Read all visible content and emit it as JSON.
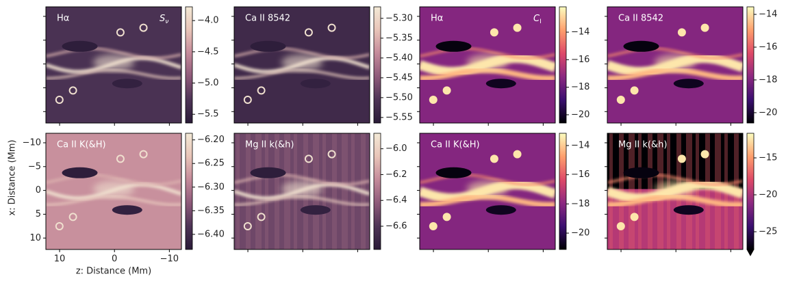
{
  "chart_data": [
    {
      "type": "heatmap",
      "label": "Hα",
      "quantity": {
        "symbol": "S",
        "subscript": "ν"
      },
      "colormap": [
        "#2a1b38",
        "#4e3456",
        "#8e5a7a",
        "#c48a9a",
        "#e8c4b8",
        "#f3e9d6"
      ],
      "clim": [
        -5.64,
        -3.78
      ],
      "cticks": [
        {
          "value": -5.5,
          "label": "−5.5"
        },
        {
          "value": -5.0,
          "label": "−5.0"
        },
        {
          "value": -4.5,
          "label": "−4.5"
        },
        {
          "value": -4.0,
          "label": "−4.0"
        }
      ]
    },
    {
      "type": "heatmap",
      "label": "Ca II 8542",
      "colormap": [
        "#2a1b38",
        "#4e3456",
        "#8e5a7a",
        "#c48a9a",
        "#e8c4b8",
        "#f3e9d6"
      ],
      "clim": [
        -5.564,
        -5.271
      ],
      "cticks": [
        {
          "value": -5.55,
          "label": "−5.55"
        },
        {
          "value": -5.5,
          "label": "−5.50"
        },
        {
          "value": -5.45,
          "label": "−5.45"
        },
        {
          "value": -5.4,
          "label": "−5.40"
        },
        {
          "value": -5.35,
          "label": "−5.35"
        },
        {
          "value": -5.3,
          "label": "−5.30"
        }
      ]
    },
    {
      "type": "heatmap",
      "label": "Hα",
      "quantity": {
        "symbol": "C",
        "subscript": "I"
      },
      "colormap": [
        "#000004",
        "#3b0f70",
        "#8c2981",
        "#de4968",
        "#fe9f6d",
        "#fcfdbf"
      ],
      "clim": [
        -20.6,
        -12.16
      ],
      "cticks": [
        {
          "value": -20,
          "label": "−20"
        },
        {
          "value": -18,
          "label": "−18"
        },
        {
          "value": -16,
          "label": "−16"
        },
        {
          "value": -14,
          "label": "−14"
        }
      ]
    },
    {
      "type": "heatmap",
      "label": "Ca II 8542",
      "colormap": [
        "#000004",
        "#3b0f70",
        "#8c2981",
        "#de4968",
        "#fe9f6d",
        "#fcfdbf"
      ],
      "clim": [
        -20.63,
        -13.54
      ],
      "cticks": [
        {
          "value": -20,
          "label": "−20"
        },
        {
          "value": -18,
          "label": "−18"
        },
        {
          "value": -16,
          "label": "−16"
        },
        {
          "value": -14,
          "label": "−14"
        }
      ]
    },
    {
      "type": "heatmap",
      "label": "Ca II K(&H)",
      "colormap": [
        "#2a1b38",
        "#4e3456",
        "#8e5a7a",
        "#c48a9a",
        "#e8c4b8",
        "#f3e9d6"
      ],
      "clim": [
        -6.432,
        -6.186
      ],
      "cticks": [
        {
          "value": -6.4,
          "label": "−6.40"
        },
        {
          "value": -6.35,
          "label": "−6.35"
        },
        {
          "value": -6.3,
          "label": "−6.30"
        },
        {
          "value": -6.25,
          "label": "−6.25"
        },
        {
          "value": -6.2,
          "label": "−6.20"
        }
      ],
      "xlabel": "z: Distance (Mm)",
      "ylabel": "x: Distance (Mm)",
      "xlim": [
        12.5,
        -12.2
      ],
      "xticks": [
        10,
        0,
        {
          "value": -10,
          "label": "−10"
        }
      ],
      "ylim": [
        -12,
        12.4
      ],
      "yticks": [
        {
          "value": -10,
          "label": "−10"
        },
        {
          "value": -5,
          "label": "−5"
        },
        0,
        5,
        10
      ]
    },
    {
      "type": "heatmap",
      "label": "Mg II k(&h)",
      "colormap": [
        "#2a1b38",
        "#4e3456",
        "#8e5a7a",
        "#c48a9a",
        "#e8c4b8",
        "#f3e9d6"
      ],
      "clim": [
        -6.78,
        -5.88
      ],
      "cticks": [
        {
          "value": -6.6,
          "label": "−6.6"
        },
        {
          "value": -6.4,
          "label": "−6.4"
        },
        {
          "value": -6.2,
          "label": "−6.2"
        },
        {
          "value": -6.0,
          "label": "−6.0"
        }
      ]
    },
    {
      "type": "heatmap",
      "label": "Ca II K(&H)",
      "colormap": [
        "#000004",
        "#3b0f70",
        "#8c2981",
        "#de4968",
        "#fe9f6d",
        "#fcfdbf"
      ],
      "clim": [
        -21.12,
        -13.16
      ],
      "cticks": [
        {
          "value": -20,
          "label": "−20"
        },
        {
          "value": -18,
          "label": "−18"
        },
        {
          "value": -16,
          "label": "−16"
        },
        {
          "value": -14,
          "label": "−14"
        }
      ]
    },
    {
      "type": "heatmap",
      "label": "Mg II k(&h)",
      "colormap": [
        "#000004",
        "#3b0f70",
        "#8c2981",
        "#de4968",
        "#fe9f6d",
        "#fcfdbf"
      ],
      "clim": [
        -27.4,
        -11.67
      ],
      "cticks": [
        {
          "value": -25,
          "label": "−25"
        },
        {
          "value": -20,
          "label": "−20"
        },
        {
          "value": -15,
          "label": "−15"
        }
      ],
      "extend": "min"
    }
  ]
}
